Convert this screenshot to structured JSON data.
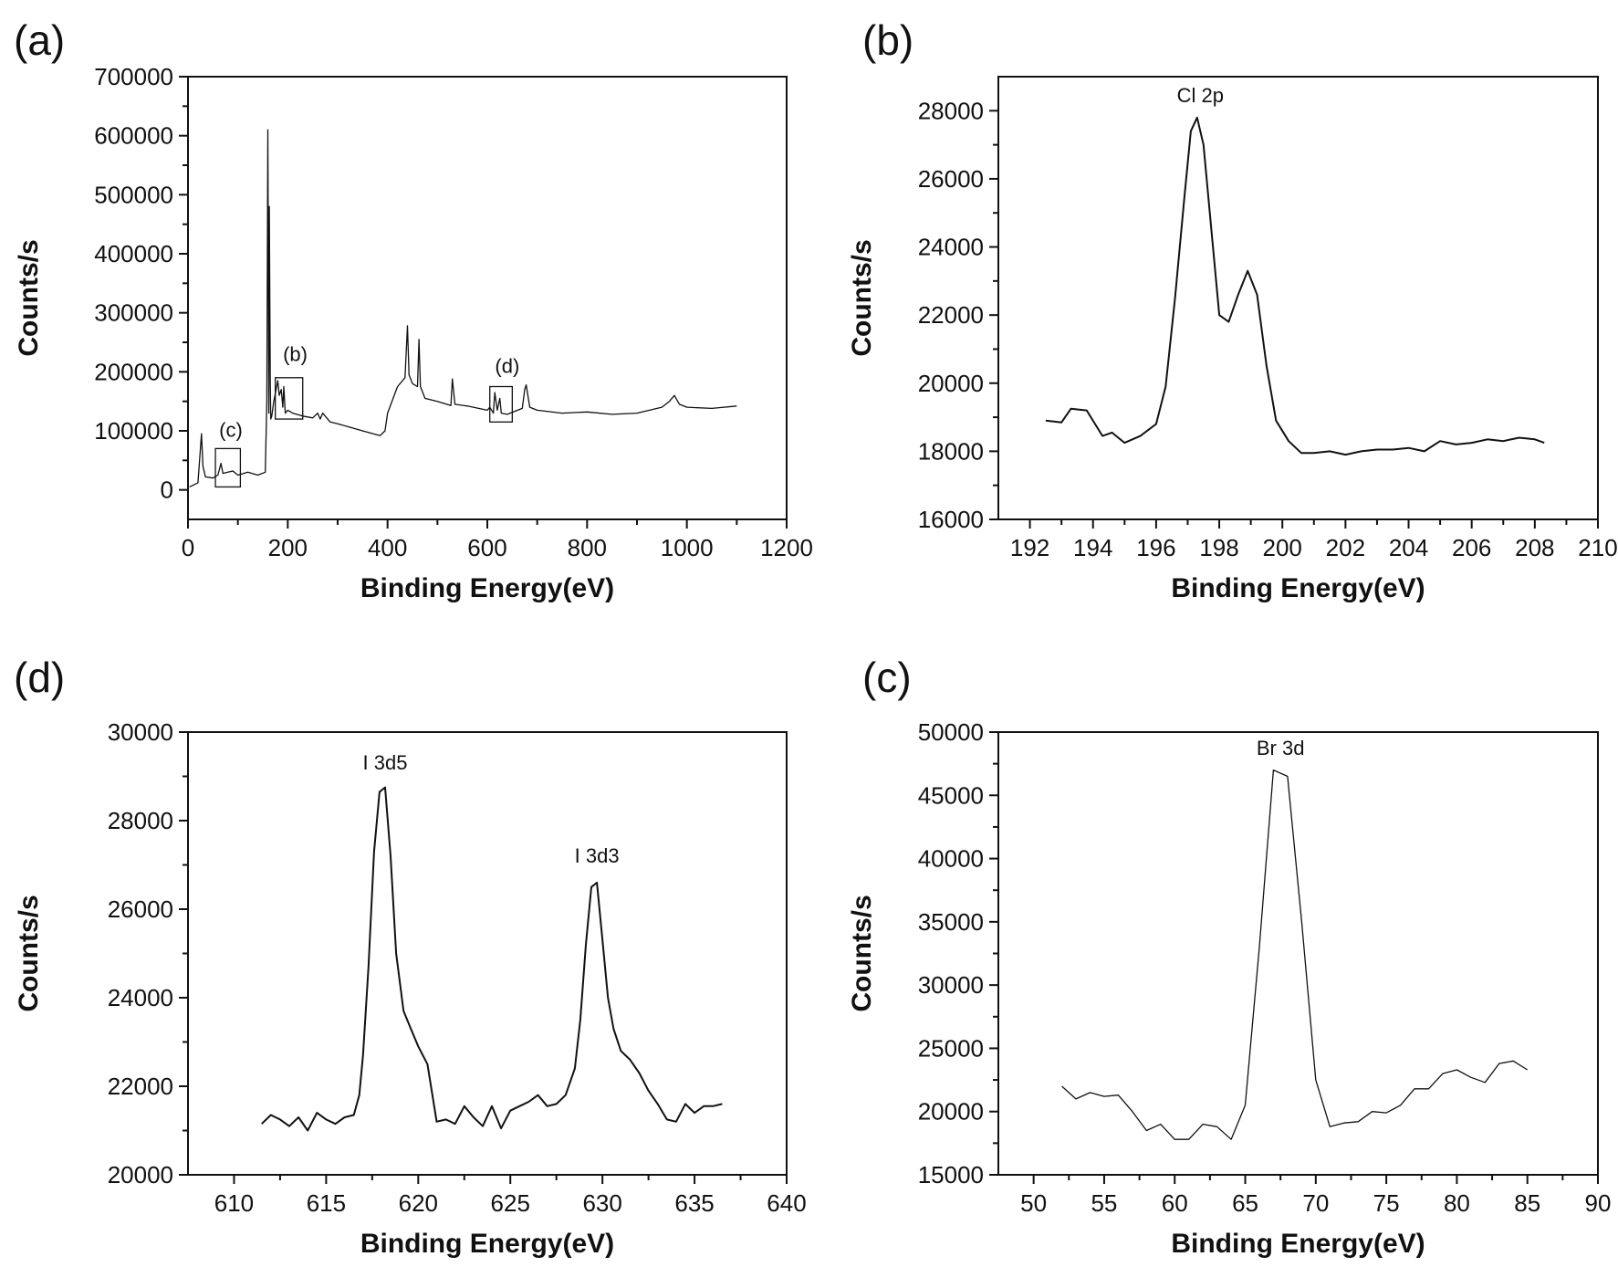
{
  "chart_data": [
    {
      "panel": "(a)",
      "type": "line",
      "xlabel": "Binding Energy(eV)",
      "ylabel": "Counts/s",
      "xlim": [
        0,
        1200
      ],
      "ylim": [
        -50000,
        700000
      ],
      "xticks": [
        0,
        200,
        400,
        600,
        800,
        1000,
        1200
      ],
      "yticks": [
        0,
        100000,
        200000,
        300000,
        400000,
        500000,
        600000,
        700000
      ],
      "x": [
        3,
        20,
        27,
        30,
        35,
        50,
        60,
        66,
        70,
        80,
        90,
        100,
        120,
        140,
        155,
        158,
        160,
        162,
        163,
        165,
        166,
        168,
        172,
        180,
        183,
        187,
        190,
        192,
        195,
        200,
        210,
        230,
        250,
        260,
        265,
        270,
        285,
        300,
        350,
        385,
        395,
        400,
        420,
        435,
        440,
        443,
        450,
        460,
        463,
        466,
        475,
        500,
        527,
        530,
        535,
        560,
        600,
        605,
        612,
        615,
        620,
        625,
        628,
        640,
        670,
        675,
        678,
        685,
        700,
        750,
        800,
        850,
        900,
        950,
        965,
        975,
        985,
        1000,
        1050,
        1100
      ],
      "y": [
        5000,
        12000,
        95000,
        40000,
        22000,
        20000,
        25000,
        45000,
        28000,
        30000,
        32000,
        25000,
        30000,
        25000,
        30000,
        150000,
        610000,
        130000,
        480000,
        180000,
        120000,
        125000,
        150000,
        185000,
        160000,
        170000,
        140000,
        175000,
        130000,
        135000,
        130000,
        125000,
        122000,
        130000,
        120000,
        130000,
        115000,
        112000,
        100000,
        92000,
        100000,
        130000,
        175000,
        190000,
        278000,
        195000,
        180000,
        175000,
        255000,
        175000,
        155000,
        150000,
        143000,
        188000,
        145000,
        142000,
        135000,
        140000,
        130000,
        165000,
        135000,
        155000,
        130000,
        128000,
        138000,
        170000,
        178000,
        140000,
        135000,
        130000,
        132000,
        128000,
        130000,
        140000,
        150000,
        160000,
        145000,
        140000,
        138000,
        142000
      ],
      "annotations": [
        {
          "text": "(b)",
          "x": 215,
          "y": 218000
        },
        {
          "text": "(c)",
          "x": 86,
          "y": 90000
        },
        {
          "text": "(d)",
          "x": 640,
          "y": 198000
        }
      ],
      "zoom_boxes": [
        {
          "label": "(b)",
          "x": [
            175,
            230
          ],
          "y": [
            120000,
            190000
          ]
        },
        {
          "label": "(c)",
          "x": [
            55,
            105
          ],
          "y": [
            5000,
            70000
          ]
        },
        {
          "label": "(d)",
          "x": [
            605,
            650
          ],
          "y": [
            115000,
            175000
          ]
        }
      ]
    },
    {
      "panel": "(b)",
      "type": "line",
      "xlabel": "Binding Energy(eV)",
      "ylabel": "Counts/s",
      "xlim": [
        191,
        210
      ],
      "ylim": [
        16000,
        29000
      ],
      "xticks": [
        192,
        194,
        196,
        198,
        200,
        202,
        204,
        206,
        208,
        210
      ],
      "yticks": [
        16000,
        18000,
        20000,
        22000,
        24000,
        26000,
        28000
      ],
      "x": [
        192.5,
        193.0,
        193.3,
        193.8,
        194.3,
        194.6,
        195.0,
        195.5,
        196.0,
        196.3,
        196.6,
        196.9,
        197.1,
        197.3,
        197.5,
        197.7,
        198.0,
        198.3,
        198.6,
        198.9,
        199.2,
        199.5,
        199.8,
        200.2,
        200.6,
        201.0,
        201.5,
        202.0,
        202.5,
        203.0,
        203.5,
        204.0,
        204.5,
        205.0,
        205.5,
        206.0,
        206.5,
        207.0,
        207.5,
        208.0,
        208.3
      ],
      "y": [
        18900,
        18850,
        19250,
        19200,
        18450,
        18550,
        18250,
        18450,
        18800,
        19900,
        22500,
        25500,
        27400,
        27800,
        27000,
        25000,
        22000,
        21800,
        22600,
        23300,
        22600,
        20500,
        18900,
        18300,
        17950,
        17950,
        18000,
        17900,
        18000,
        18050,
        18050,
        18100,
        18000,
        18300,
        18200,
        18250,
        18350,
        18300,
        18400,
        18350,
        18250
      ],
      "annotations": [
        {
          "text": "Cl 2p",
          "x": 197.4,
          "y": 28250
        }
      ]
    },
    {
      "panel": "(d)",
      "type": "line",
      "xlabel": "Binding Energy(eV)",
      "ylabel": "Counts/s",
      "xlim": [
        607.5,
        640
      ],
      "ylim": [
        20000,
        30000
      ],
      "xticks": [
        610,
        615,
        620,
        625,
        630,
        635,
        640
      ],
      "yticks": [
        20000,
        22000,
        24000,
        26000,
        28000,
        30000
      ],
      "x": [
        611.5,
        612.0,
        612.5,
        613.0,
        613.5,
        614.0,
        614.5,
        615.0,
        615.5,
        616.0,
        616.5,
        616.8,
        617.0,
        617.3,
        617.6,
        617.9,
        618.2,
        618.5,
        618.8,
        619.2,
        619.6,
        620.0,
        620.5,
        621.0,
        621.5,
        622.0,
        622.5,
        623.0,
        623.5,
        624.0,
        624.5,
        625.0,
        625.5,
        626.0,
        626.5,
        627.0,
        627.5,
        628.0,
        628.5,
        628.8,
        629.1,
        629.4,
        629.7,
        630.0,
        630.3,
        630.6,
        631.0,
        631.5,
        632.0,
        632.5,
        633.0,
        633.5,
        634.0,
        634.5,
        635.0,
        635.5,
        636.0,
        636.5
      ],
      "y": [
        21150,
        21350,
        21250,
        21100,
        21300,
        21000,
        21400,
        21250,
        21150,
        21300,
        21350,
        21800,
        22700,
        24700,
        27300,
        28650,
        28750,
        27200,
        25000,
        23700,
        23300,
        22900,
        22500,
        21200,
        21250,
        21150,
        21550,
        21300,
        21100,
        21550,
        21050,
        21450,
        21550,
        21650,
        21800,
        21550,
        21600,
        21800,
        22400,
        23500,
        25200,
        26500,
        26600,
        25300,
        24000,
        23300,
        22800,
        22600,
        22300,
        21900,
        21600,
        21250,
        21200,
        21600,
        21400,
        21550,
        21550,
        21600
      ],
      "annotations": [
        {
          "text": "I 3d5",
          "x": 618.2,
          "y": 29150
        },
        {
          "text": "I 3d3",
          "x": 629.7,
          "y": 27050
        }
      ]
    },
    {
      "panel": "(c)",
      "type": "line",
      "xlabel": "Binding Energy(eV)",
      "ylabel": "Counts/s",
      "xlim": [
        47.5,
        90
      ],
      "ylim": [
        15000,
        50000
      ],
      "xticks": [
        50,
        55,
        60,
        65,
        70,
        75,
        80,
        85,
        90
      ],
      "yticks": [
        15000,
        20000,
        25000,
        30000,
        35000,
        40000,
        45000,
        50000
      ],
      "x": [
        52,
        53,
        54,
        55,
        56,
        57,
        58,
        59,
        60,
        61,
        62,
        63,
        64,
        65,
        66,
        67,
        68,
        69,
        70,
        71,
        72,
        73,
        74,
        75,
        76,
        77,
        78,
        79,
        80,
        81,
        82,
        83,
        84,
        85
      ],
      "y": [
        22000,
        21000,
        21500,
        21200,
        21300,
        20000,
        18500,
        19000,
        17800,
        17800,
        19000,
        18800,
        17800,
        20500,
        33000,
        47000,
        46500,
        35000,
        22500,
        18800,
        19100,
        19200,
        20000,
        19900,
        20500,
        21800,
        21800,
        23000,
        23300,
        22700,
        22300,
        23800,
        24000,
        23300
      ],
      "annotations": [
        {
          "text": "Br 3d",
          "x": 67.5,
          "y": 48200
        }
      ]
    }
  ]
}
